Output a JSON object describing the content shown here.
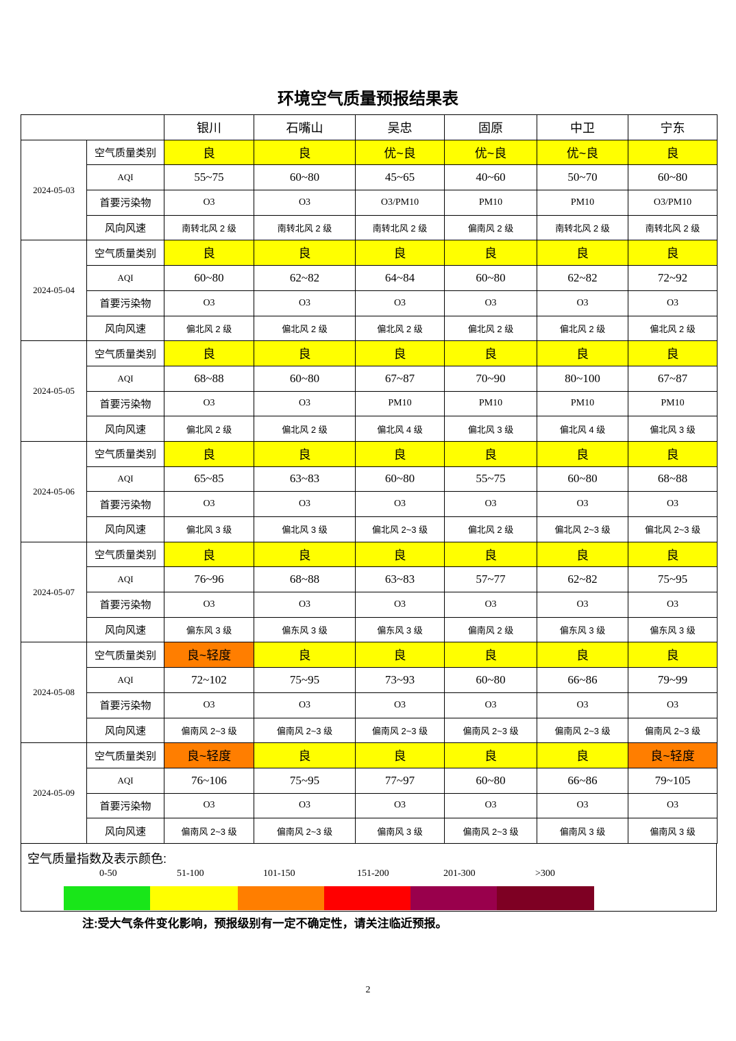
{
  "title": "环境空气质量预报结果表",
  "cities": [
    "银川",
    "石嘴山",
    "吴忠",
    "固原",
    "中卫",
    "宁东"
  ],
  "row_labels": {
    "category": "空气质量类别",
    "aqi": "AQI",
    "pollutant": "首要污染物",
    "wind": "风向风速"
  },
  "colors": {
    "良": "#ffff00",
    "优~良": "#ffff00",
    "良~轻度": "#ff7e00"
  },
  "days": [
    {
      "date": "2024-05-03",
      "category": [
        "良",
        "良",
        "优~良",
        "优~良",
        "优~良",
        "良"
      ],
      "aqi": [
        "55~75",
        "60~80",
        "45~65",
        "40~60",
        "50~70",
        "60~80"
      ],
      "pollutant": [
        "O3",
        "O3",
        "O3/PM10",
        "PM10",
        "PM10",
        "O3/PM10"
      ],
      "wind": [
        "南转北风 2 级",
        "南转北风 2 级",
        "南转北风 2 级",
        "偏南风 2 级",
        "南转北风 2 级",
        "南转北风 2 级"
      ]
    },
    {
      "date": "2024-05-04",
      "category": [
        "良",
        "良",
        "良",
        "良",
        "良",
        "良"
      ],
      "aqi": [
        "60~80",
        "62~82",
        "64~84",
        "60~80",
        "62~82",
        "72~92"
      ],
      "pollutant": [
        "O3",
        "O3",
        "O3",
        "O3",
        "O3",
        "O3"
      ],
      "wind": [
        "偏北风 2 级",
        "偏北风 2 级",
        "偏北风 2 级",
        "偏北风 2 级",
        "偏北风 2 级",
        "偏北风 2 级"
      ]
    },
    {
      "date": "2024-05-05",
      "category": [
        "良",
        "良",
        "良",
        "良",
        "良",
        "良"
      ],
      "aqi": [
        "68~88",
        "60~80",
        "67~87",
        "70~90",
        "80~100",
        "67~87"
      ],
      "pollutant": [
        "O3",
        "O3",
        "PM10",
        "PM10",
        "PM10",
        "PM10"
      ],
      "wind": [
        "偏北风 2 级",
        "偏北风 2 级",
        "偏北风 4 级",
        "偏北风 3 级",
        "偏北风 4 级",
        "偏北风 3 级"
      ]
    },
    {
      "date": "2024-05-06",
      "category": [
        "良",
        "良",
        "良",
        "良",
        "良",
        "良"
      ],
      "aqi": [
        "65~85",
        "63~83",
        "60~80",
        "55~75",
        "60~80",
        "68~88"
      ],
      "pollutant": [
        "O3",
        "O3",
        "O3",
        "O3",
        "O3",
        "O3"
      ],
      "wind": [
        "偏北风 3 级",
        "偏北风 3 级",
        "偏北风 2~3 级",
        "偏北风 2 级",
        "偏北风 2~3 级",
        "偏北风 2~3 级"
      ]
    },
    {
      "date": "2024-05-07",
      "category": [
        "良",
        "良",
        "良",
        "良",
        "良",
        "良"
      ],
      "aqi": [
        "76~96",
        "68~88",
        "63~83",
        "57~77",
        "62~82",
        "75~95"
      ],
      "pollutant": [
        "O3",
        "O3",
        "O3",
        "O3",
        "O3",
        "O3"
      ],
      "wind": [
        "偏东风 3 级",
        "偏东风 3 级",
        "偏东风 3 级",
        "偏南风 2 级",
        "偏东风 3 级",
        "偏东风 3 级"
      ]
    },
    {
      "date": "2024-05-08",
      "category": [
        "良~轻度",
        "良",
        "良",
        "良",
        "良",
        "良"
      ],
      "aqi": [
        "72~102",
        "75~95",
        "73~93",
        "60~80",
        "66~86",
        "79~99"
      ],
      "pollutant": [
        "O3",
        "O3",
        "O3",
        "O3",
        "O3",
        "O3"
      ],
      "wind": [
        "偏南风 2~3 级",
        "偏南风 2~3 级",
        "偏南风 2~3 级",
        "偏南风 2~3 级",
        "偏南风 2~3 级",
        "偏南风 2~3 级"
      ]
    },
    {
      "date": "2024-05-09",
      "category": [
        "良~轻度",
        "良",
        "良",
        "良",
        "良",
        "良~轻度"
      ],
      "aqi": [
        "76~106",
        "75~95",
        "77~97",
        "60~80",
        "66~86",
        "79~105"
      ],
      "pollutant": [
        "O3",
        "O3",
        "O3",
        "O3",
        "O3",
        "O3"
      ],
      "wind": [
        "偏南风 2~3 级",
        "偏南风 2~3 级",
        "偏南风 3 级",
        "偏南风 2~3 级",
        "偏南风 3 级",
        "偏南风 3 级"
      ]
    }
  ],
  "legend": {
    "title": "空气质量指数及表示颜色:",
    "ranges": [
      {
        "label": "0-50",
        "color": "#19e619"
      },
      {
        "label": "51-100",
        "color": "#ffff00"
      },
      {
        "label": "101-150",
        "color": "#ff7e00"
      },
      {
        "label": "151-200",
        "color": "#ff0000"
      },
      {
        "label": "201-300",
        "color": "#99004c"
      },
      {
        "label": ">300",
        "color": "#7e0023"
      }
    ]
  },
  "note": "注:受大气条件变化影响，预报级别有一定不确定性，请关注临近预报。",
  "page_number": "2"
}
